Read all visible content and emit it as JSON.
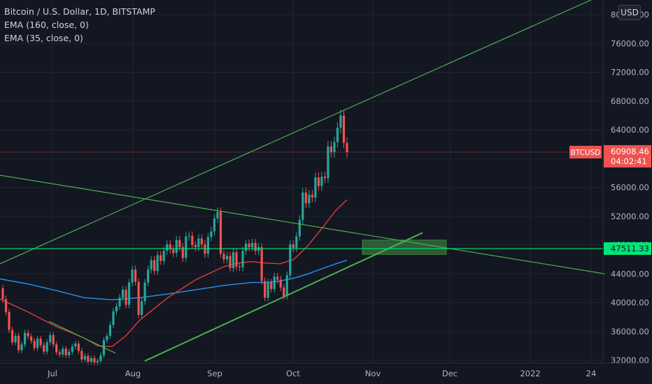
{
  "chart_data": {
    "type": "candlestick",
    "title": "Bitcoin / U.S. Dollar, 1D, BITSTAMP",
    "symbol": "BTCUSD",
    "currency": "USD",
    "indicators": [
      {
        "name": "EMA (160, close, 0)",
        "color": "#2196f3"
      },
      {
        "name": "EMA (35, close, 0)",
        "color": "#e53935"
      }
    ],
    "y_axis": {
      "ticks": [
        "32000.00",
        "36000.00",
        "40000.00",
        "44000.00",
        "48000.00",
        "52000.00",
        "56000.00",
        "60000.00",
        "64000.00",
        "68000.00",
        "72000.00",
        "76000.00",
        "80000.00"
      ],
      "range": [
        32000,
        82000
      ]
    },
    "x_axis": {
      "ticks": [
        "Jul",
        "Aug",
        "Sep",
        "Oct",
        "Nov",
        "Dec",
        "2022",
        "24"
      ]
    },
    "last_price": "60908.46",
    "countdown": "04:02:41",
    "horizontal_level": "47511.33",
    "up_color": "#26a69a",
    "down_color": "#ef5350",
    "candles_open_close": [
      [
        42000,
        40500
      ],
      [
        40500,
        38700
      ],
      [
        38700,
        36200
      ],
      [
        36200,
        34500
      ],
      [
        34500,
        35400
      ],
      [
        35400,
        33400
      ],
      [
        33400,
        34200
      ],
      [
        34200,
        35800
      ],
      [
        35800,
        35300
      ],
      [
        35300,
        34700
      ],
      [
        34700,
        33700
      ],
      [
        33700,
        35000
      ],
      [
        35000,
        34100
      ],
      [
        34100,
        33200
      ],
      [
        33200,
        34500
      ],
      [
        34500,
        35500
      ],
      [
        35500,
        34200
      ],
      [
        34200,
        33100
      ],
      [
        33100,
        32800
      ],
      [
        32800,
        33600
      ],
      [
        33600,
        32700
      ],
      [
        32700,
        33200
      ],
      [
        33200,
        33900
      ],
      [
        33900,
        34300
      ],
      [
        34300,
        33300
      ],
      [
        33300,
        32100
      ],
      [
        32100,
        32600
      ],
      [
        32600,
        31800
      ],
      [
        31800,
        32300
      ],
      [
        32300,
        31700
      ],
      [
        31700,
        31900
      ],
      [
        31900,
        32700
      ],
      [
        32700,
        34800
      ],
      [
        34800,
        35400
      ],
      [
        35400,
        36900
      ],
      [
        36900,
        38800
      ],
      [
        38800,
        39500
      ],
      [
        39500,
        40700
      ],
      [
        40700,
        41800
      ],
      [
        41800,
        39700
      ],
      [
        39700,
        42800
      ],
      [
        42800,
        44600
      ],
      [
        44600,
        42900
      ],
      [
        42900,
        38300
      ],
      [
        38300,
        40200
      ],
      [
        40200,
        42800
      ],
      [
        42800,
        44600
      ],
      [
        44600,
        45900
      ],
      [
        45900,
        44400
      ],
      [
        44400,
        46600
      ],
      [
        46600,
        45800
      ],
      [
        45800,
        47200
      ],
      [
        47200,
        48100
      ],
      [
        48100,
        47400
      ],
      [
        47400,
        46900
      ],
      [
        46900,
        48700
      ],
      [
        48700,
        47700
      ],
      [
        47700,
        46200
      ],
      [
        46200,
        49200
      ],
      [
        49200,
        49300
      ],
      [
        49300,
        48000
      ],
      [
        48000,
        47700
      ],
      [
        47700,
        48900
      ],
      [
        48900,
        48100
      ],
      [
        48100,
        46800
      ],
      [
        46800,
        49100
      ],
      [
        49100,
        49900
      ],
      [
        49900,
        51700
      ],
      [
        51700,
        52600
      ],
      [
        52600,
        46800
      ],
      [
        46800,
        46000
      ],
      [
        46000,
        46500
      ],
      [
        46500,
        44800
      ],
      [
        44800,
        47000
      ],
      [
        47000,
        45000
      ],
      [
        45000,
        44900
      ],
      [
        44900,
        47200
      ],
      [
        47200,
        48200
      ],
      [
        48200,
        47700
      ],
      [
        47700,
        48300
      ],
      [
        48300,
        47200
      ],
      [
        47200,
        47700
      ],
      [
        47700,
        43000
      ],
      [
        43000,
        40700
      ],
      [
        40700,
        42800
      ],
      [
        42800,
        41900
      ],
      [
        41900,
        43600
      ],
      [
        43600,
        43200
      ],
      [
        43200,
        42100
      ],
      [
        42100,
        40900
      ],
      [
        40900,
        43800
      ],
      [
        43800,
        48100
      ],
      [
        48100,
        47600
      ],
      [
        47600,
        49200
      ],
      [
        49200,
        51500
      ],
      [
        51500,
        55300
      ],
      [
        55300,
        53800
      ],
      [
        53800,
        55000
      ],
      [
        55000,
        54600
      ],
      [
        54600,
        57400
      ],
      [
        57400,
        56200
      ],
      [
        56200,
        57500
      ],
      [
        57500,
        57300
      ],
      [
        57300,
        61700
      ],
      [
        61700,
        60900
      ],
      [
        60900,
        62300
      ],
      [
        62300,
        64300
      ],
      [
        64300,
        66000
      ],
      [
        66000,
        62200
      ],
      [
        62200,
        60900
      ]
    ],
    "ema160": [
      [
        0,
        43300
      ],
      [
        40,
        42600
      ],
      [
        80,
        41700
      ],
      [
        120,
        40700
      ],
      [
        160,
        40400
      ],
      [
        200,
        40700
      ],
      [
        240,
        41200
      ],
      [
        280,
        41800
      ],
      [
        320,
        42400
      ],
      [
        360,
        42800
      ],
      [
        380,
        42800
      ],
      [
        400,
        43000
      ],
      [
        420,
        43400
      ],
      [
        440,
        44000
      ],
      [
        460,
        44700
      ],
      [
        480,
        45400
      ],
      [
        496,
        45900
      ]
    ],
    "ema35": [
      [
        0,
        40500
      ],
      [
        40,
        38700
      ],
      [
        80,
        36700
      ],
      [
        120,
        35100
      ],
      [
        140,
        34000
      ],
      [
        160,
        33900
      ],
      [
        180,
        35400
      ],
      [
        200,
        37600
      ],
      [
        240,
        40700
      ],
      [
        280,
        43200
      ],
      [
        320,
        45000
      ],
      [
        340,
        45500
      ],
      [
        360,
        45700
      ],
      [
        380,
        45500
      ],
      [
        400,
        45400
      ],
      [
        420,
        46000
      ],
      [
        440,
        47900
      ],
      [
        460,
        50300
      ],
      [
        480,
        52800
      ],
      [
        496,
        54300
      ]
    ],
    "trend_lines": [
      {
        "from": [
          0,
          45400
        ],
        "to": [
          860,
          82700
        ],
        "color": "#4caf50"
      },
      {
        "from": [
          0,
          57700
        ],
        "to": [
          865,
          44000
        ],
        "color": "#4caf50"
      },
      {
        "from": [
          207,
          31900
        ],
        "to": [
          604,
          49700
        ],
        "color": "#4caf50"
      },
      {
        "from": [
          70,
          37400
        ],
        "to": [
          165,
          33000
        ],
        "color": "#4caf50"
      }
    ],
    "zone": {
      "from_x": 518,
      "to_x": 638,
      "price_top": 48700,
      "price_bottom": 46700
    }
  }
}
